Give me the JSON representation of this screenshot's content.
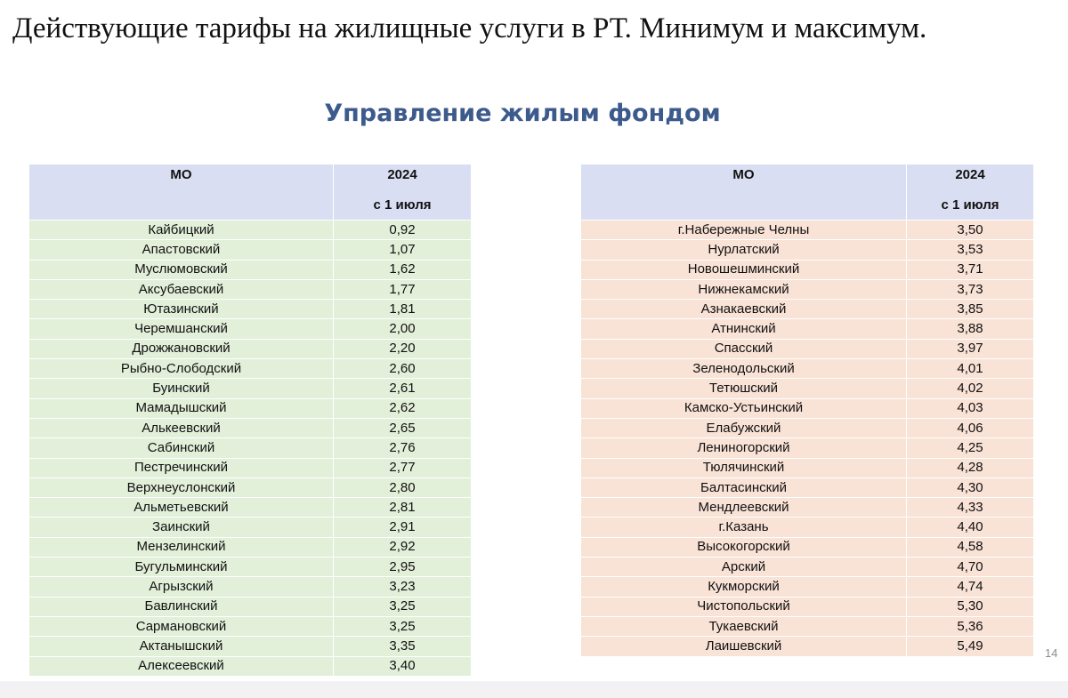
{
  "heading": "Действующие тарифы на жилищные услуги в РТ. Минимум и максимум.",
  "subheading": "Управление жилым фондом",
  "left_table": {
    "col_mo": "МО",
    "col_year": "2024",
    "col_from": "с 1 июля",
    "rows": [
      {
        "mo": "Кайбицкий",
        "value": "0,92"
      },
      {
        "mo": "Апастовский",
        "value": "1,07"
      },
      {
        "mo": "Муслюмовский",
        "value": "1,62"
      },
      {
        "mo": "Аксубаевский",
        "value": "1,77"
      },
      {
        "mo": "Ютазинский",
        "value": "1,81"
      },
      {
        "mo": "Черемшанский",
        "value": "2,00"
      },
      {
        "mo": "Дрожжановский",
        "value": "2,20"
      },
      {
        "mo": "Рыбно-Слободский",
        "value": "2,60"
      },
      {
        "mo": "Буинский",
        "value": "2,61"
      },
      {
        "mo": "Мамадышский",
        "value": "2,62"
      },
      {
        "mo": "Алькеевский",
        "value": "2,65"
      },
      {
        "mo": "Сабинский",
        "value": "2,76"
      },
      {
        "mo": "Пестречинский",
        "value": "2,77"
      },
      {
        "mo": "Верхнеуслонский",
        "value": "2,80"
      },
      {
        "mo": "Альметьевский",
        "value": "2,81"
      },
      {
        "mo": "Заинский",
        "value": "2,91"
      },
      {
        "mo": "Мензелинский",
        "value": "2,92"
      },
      {
        "mo": "Бугульминский",
        "value": "2,95"
      },
      {
        "mo": "Агрызский",
        "value": "3,23"
      },
      {
        "mo": "Бавлинский",
        "value": "3,25"
      },
      {
        "mo": "Сармановский",
        "value": "3,25"
      },
      {
        "mo": "Актанышский",
        "value": "3,35"
      },
      {
        "mo": "Алексеевский",
        "value": "3,40"
      }
    ]
  },
  "right_table": {
    "col_mo": "МО",
    "col_year": "2024",
    "col_from": "с 1 июля",
    "rows": [
      {
        "mo": "г.Набережные Челны",
        "value": "3,50"
      },
      {
        "mo": "Нурлатский",
        "value": "3,53"
      },
      {
        "mo": "Новошешминский",
        "value": "3,71"
      },
      {
        "mo": "Нижнекамский",
        "value": "3,73"
      },
      {
        "mo": "Азнакаевский",
        "value": "3,85"
      },
      {
        "mo": "Атнинский",
        "value": "3,88"
      },
      {
        "mo": "Спасский",
        "value": "3,97"
      },
      {
        "mo": "Зеленодольский",
        "value": "4,01"
      },
      {
        "mo": "Тетюшский",
        "value": "4,02"
      },
      {
        "mo": "Камско-Устьинский",
        "value": "4,03"
      },
      {
        "mo": "Елабужский",
        "value": "4,06"
      },
      {
        "mo": "Лениногорский",
        "value": "4,25"
      },
      {
        "mo": "Тюлячинский",
        "value": "4,28"
      },
      {
        "mo": "Балтасинский",
        "value": "4,30"
      },
      {
        "mo": "Мендлеевский",
        "value": "4,33"
      },
      {
        "mo": "г.Казань",
        "value": "4,40"
      },
      {
        "mo": "Высокогорский",
        "value": "4,58"
      },
      {
        "mo": "Арский",
        "value": "4,70"
      },
      {
        "mo": "Кукморский",
        "value": "4,74"
      },
      {
        "mo": "Чистопольский",
        "value": "5,30"
      },
      {
        "mo": "Тукаевский",
        "value": "5,36"
      },
      {
        "mo": "Лаишевский",
        "value": "5,49"
      }
    ]
  },
  "page_number": "14",
  "colors": {
    "header_bg": "#d9def2",
    "left_rows_bg": "#e2efd9",
    "right_rows_bg": "#f9e2d6",
    "subheading": "#3c5a8c"
  }
}
